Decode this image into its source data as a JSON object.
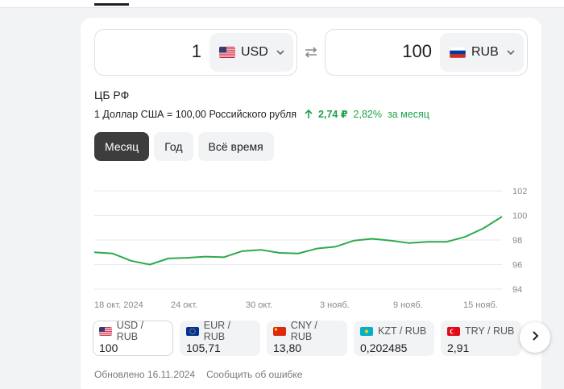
{
  "converter": {
    "from": {
      "amount": "1",
      "code": "USD",
      "flag_icon": "us-flag-icon"
    },
    "to": {
      "amount": "100",
      "code": "RUB",
      "flag_icon": "ru-flag-icon"
    }
  },
  "rate": {
    "source": "ЦБ РФ",
    "description": "1 Доллар США = 100,00 Российского рубля",
    "change_abs": "2,74 ₽",
    "change_pct": "2,82%",
    "change_period": "за месяц",
    "positive_color": "#1aa34a"
  },
  "periods": [
    {
      "label": "Месяц",
      "active": true
    },
    {
      "label": "Год",
      "active": false
    },
    {
      "label": "Всё время",
      "active": false
    }
  ],
  "chart_data": {
    "type": "line",
    "ylim": [
      94,
      102
    ],
    "y_ticks": [
      "102",
      "100",
      "98",
      "96",
      "94"
    ],
    "x_tick_labels": [
      "18 окт. 2024",
      "24 окт.",
      "30 окт.",
      "3 нояб.",
      "9 нояб.",
      "15 нояб."
    ],
    "series": [
      {
        "values": [
          97.0,
          96.9,
          96.3,
          96.0,
          96.5,
          96.55,
          96.65,
          96.6,
          97.1,
          97.2,
          96.95,
          96.9,
          97.3,
          97.45,
          97.95,
          98.1,
          97.95,
          97.75,
          97.85,
          97.85,
          98.25,
          98.95,
          99.9
        ],
        "color": "#2eaa4e"
      }
    ],
    "grid": true
  },
  "pairs": [
    {
      "label": "USD / RUB",
      "value": "100",
      "flag": "us-flag-icon",
      "active": true
    },
    {
      "label": "EUR / RUB",
      "value": "105,71",
      "flag": "eu-flag-icon",
      "active": false
    },
    {
      "label": "CNY / RUB",
      "value": "13,80",
      "flag": "cn-flag-icon",
      "active": false
    },
    {
      "label": "KZT / RUB",
      "value": "0,202485",
      "flag": "kz-flag-icon",
      "active": false
    },
    {
      "label": "TRY / RUB",
      "value": "2,91",
      "flag": "tr-flag-icon",
      "active": false
    }
  ],
  "footer": {
    "updated": "Обновлено 16.11.2024",
    "report": "Сообщить об ошибке"
  }
}
